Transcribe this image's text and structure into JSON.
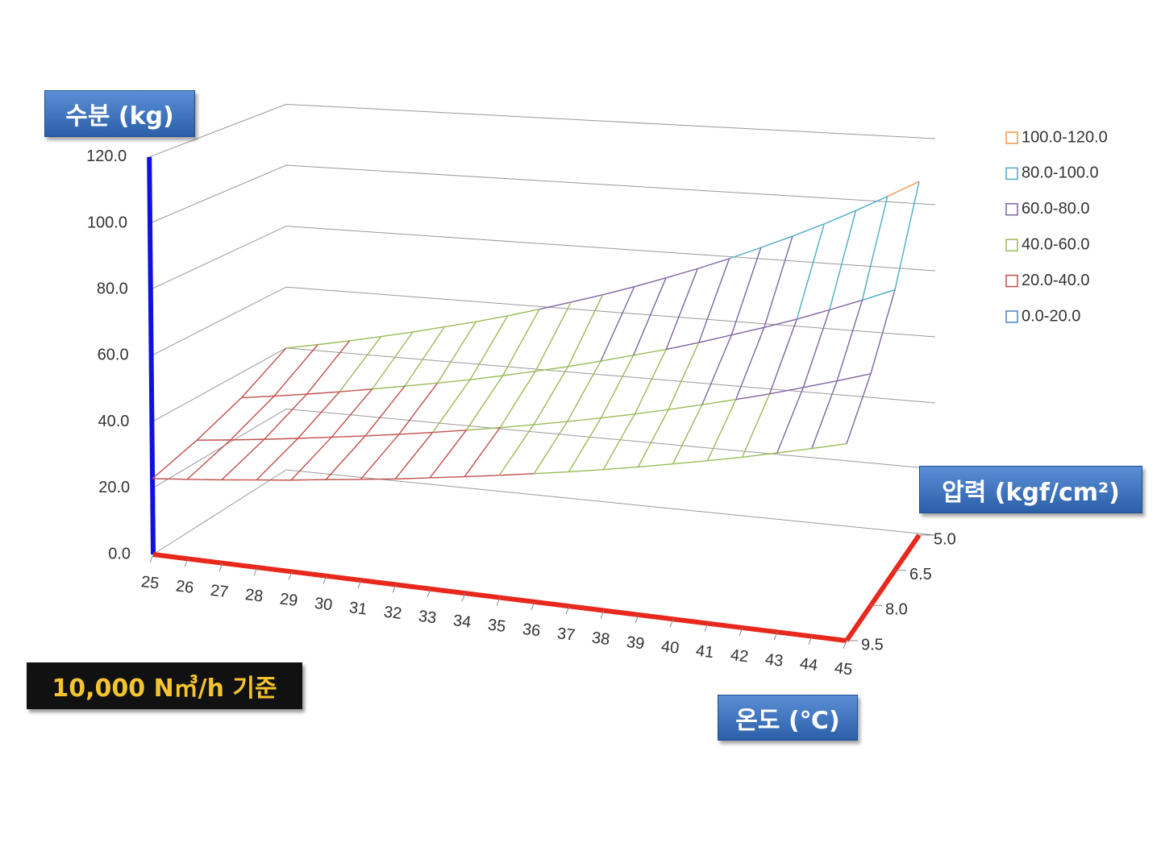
{
  "chart_data": {
    "type": "surface3d",
    "z_axis_label": "수분 (kg)",
    "depth_axis_label": "압력 (kgf/cm²)",
    "x_axis_label": "온도 (℃)",
    "annotation": "10,000 N㎥/h 기준",
    "categories": [
      25,
      26,
      27,
      28,
      29,
      30,
      31,
      32,
      33,
      34,
      35,
      36,
      37,
      38,
      39,
      40,
      41,
      42,
      43,
      44,
      45
    ],
    "depth_categories": [
      {
        "value": 5,
        "label": "5.0"
      },
      {
        "value": 6.5,
        "label": "6.5"
      },
      {
        "value": 8,
        "label": "8.0"
      },
      {
        "value": 9.5,
        "label": "9.5"
      }
    ],
    "series": [
      {
        "values": [
          40.0,
          42.0,
          44.1,
          46.4,
          48.7,
          51.2,
          53.7,
          56.4,
          59.3,
          62.3,
          65.4,
          68.7,
          72.2,
          75.8,
          79.6,
          83.7,
          87.9,
          92.3,
          97.0,
          101.9,
          107.0
        ]
      },
      {
        "values": [
          32.0,
          33.6,
          35.3,
          37.1,
          39.0,
          41.0,
          43.0,
          45.1,
          47.4,
          49.8,
          52.3,
          55.0,
          57.8,
          60.6,
          63.7,
          67.0,
          70.3,
          73.8,
          77.6,
          81.5,
          85.6
        ]
      },
      {
        "values": [
          26.7,
          28.0,
          29.4,
          30.9,
          32.5,
          34.1,
          35.8,
          37.6,
          39.5,
          41.5,
          43.6,
          45.8,
          48.1,
          50.5,
          53.1,
          55.8,
          58.6,
          61.5,
          64.7,
          67.9,
          71.3
        ]
      },
      {
        "values": [
          22.9,
          24.0,
          25.2,
          26.5,
          27.8,
          29.3,
          30.7,
          32.2,
          33.9,
          35.6,
          37.4,
          39.3,
          41.2,
          43.3,
          45.5,
          47.8,
          50.2,
          52.7,
          55.4,
          58.2,
          61.1
        ]
      }
    ],
    "zlim": [
      0,
      120
    ],
    "zticks": [
      {
        "value": 0,
        "label": "0.0"
      },
      {
        "value": 20,
        "label": "20.0"
      },
      {
        "value": 40,
        "label": "40.0"
      },
      {
        "value": 60,
        "label": "60.0"
      },
      {
        "value": 80,
        "label": "80.0"
      },
      {
        "value": 100,
        "label": "100.0"
      },
      {
        "value": 120,
        "label": "120.0"
      }
    ],
    "bands": [
      {
        "label": "100.0-120.0",
        "min": 100,
        "max": 120,
        "color": "#f79646"
      },
      {
        "label": "80.0-100.0",
        "min": 80,
        "max": 100,
        "color": "#4bacc6"
      },
      {
        "label": "60.0-80.0",
        "min": 60,
        "max": 80,
        "color": "#8064a2"
      },
      {
        "label": "40.0-60.0",
        "min": 40,
        "max": 60,
        "color": "#9bbb59"
      },
      {
        "label": "20.0-40.0",
        "min": 20,
        "max": 40,
        "color": "#c0504d"
      },
      {
        "label": "0.0-20.0",
        "min": 0,
        "max": 20,
        "color": "#4f81bd"
      }
    ]
  }
}
